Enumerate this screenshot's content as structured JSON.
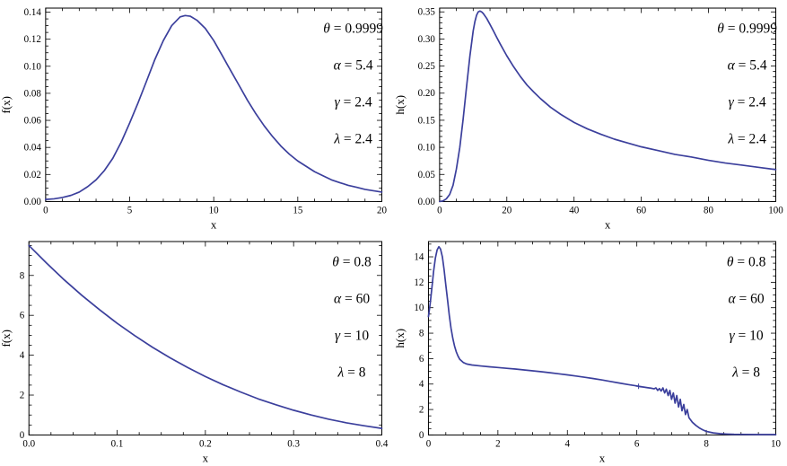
{
  "figure": {
    "curve_color": "#3b3f9c",
    "frame_color": "#000000",
    "background": "#ffffff"
  },
  "chart_data": [
    {
      "name": "pdf-plot-parameters-set-1",
      "type": "line",
      "title": "",
      "xlabel": "x",
      "ylabel": "f(x)",
      "xlim": [
        0,
        20
      ],
      "ylim": [
        0,
        0.143
      ],
      "grid": false,
      "legend": "none",
      "xticks": {
        "values": [
          0,
          5,
          10,
          15,
          20
        ],
        "labels": [
          "0",
          "5",
          "10",
          "15",
          "20"
        ]
      },
      "yticks": {
        "values": [
          0,
          0.02,
          0.04,
          0.06,
          0.08,
          0.1,
          0.12,
          0.14
        ],
        "labels": [
          "0.00",
          "0.02",
          "0.04",
          "0.06",
          "0.08",
          "0.10",
          "0.12",
          "0.14"
        ]
      },
      "xminor": 1,
      "yminor": 0.005,
      "annotations": [
        {
          "symbol": "θ",
          "value": "0.9999"
        },
        {
          "symbol": "α",
          "value": "5.4"
        },
        {
          "symbol": "γ",
          "value": "2.4"
        },
        {
          "symbol": "λ",
          "value": "2.4"
        }
      ],
      "points": [
        [
          0,
          0.0015
        ],
        [
          0.5,
          0.002
        ],
        [
          1,
          0.003
        ],
        [
          1.5,
          0.0045
        ],
        [
          2,
          0.007
        ],
        [
          2.5,
          0.011
        ],
        [
          3,
          0.016
        ],
        [
          3.5,
          0.023
        ],
        [
          4,
          0.032
        ],
        [
          4.5,
          0.044
        ],
        [
          5,
          0.058
        ],
        [
          5.5,
          0.073
        ],
        [
          6,
          0.089
        ],
        [
          6.5,
          0.105
        ],
        [
          7,
          0.119
        ],
        [
          7.5,
          0.13
        ],
        [
          8,
          0.1365
        ],
        [
          8.3,
          0.1375
        ],
        [
          8.6,
          0.137
        ],
        [
          9,
          0.134
        ],
        [
          9.5,
          0.128
        ],
        [
          10,
          0.119
        ],
        [
          10.5,
          0.108
        ],
        [
          11,
          0.097
        ],
        [
          11.5,
          0.086
        ],
        [
          12,
          0.075
        ],
        [
          12.5,
          0.065
        ],
        [
          13,
          0.056
        ],
        [
          13.5,
          0.048
        ],
        [
          14,
          0.041
        ],
        [
          14.5,
          0.035
        ],
        [
          15,
          0.03
        ],
        [
          15.5,
          0.026
        ],
        [
          16,
          0.022
        ],
        [
          16.5,
          0.019
        ],
        [
          17,
          0.016
        ],
        [
          17.5,
          0.014
        ],
        [
          18,
          0.012
        ],
        [
          18.5,
          0.0105
        ],
        [
          19,
          0.009
        ],
        [
          19.5,
          0.008
        ],
        [
          20,
          0.007
        ]
      ]
    },
    {
      "name": "hazard-plot-parameters-set-1",
      "type": "line",
      "title": "",
      "xlabel": "x",
      "ylabel": "h(x)",
      "xlim": [
        0,
        100
      ],
      "ylim": [
        0,
        0.357
      ],
      "grid": false,
      "legend": "none",
      "xticks": {
        "values": [
          0,
          20,
          40,
          60,
          80,
          100
        ],
        "labels": [
          "0",
          "20",
          "40",
          "60",
          "80",
          "100"
        ]
      },
      "yticks": {
        "values": [
          0,
          0.05,
          0.1,
          0.15,
          0.2,
          0.25,
          0.3,
          0.35
        ],
        "labels": [
          "0.00",
          "0.05",
          "0.10",
          "0.15",
          "0.20",
          "0.25",
          "0.30",
          "0.35"
        ]
      },
      "xminor": 5,
      "yminor": 0.01,
      "annotations": [
        {
          "symbol": "θ",
          "value": "0.9999"
        },
        {
          "symbol": "α",
          "value": "5.4"
        },
        {
          "symbol": "γ",
          "value": "2.4"
        },
        {
          "symbol": "λ",
          "value": "2.4"
        }
      ],
      "points": [
        [
          0,
          0
        ],
        [
          1,
          0.001
        ],
        [
          2,
          0.005
        ],
        [
          3,
          0.013
        ],
        [
          4,
          0.03
        ],
        [
          5,
          0.06
        ],
        [
          6,
          0.1
        ],
        [
          7,
          0.152
        ],
        [
          8,
          0.21
        ],
        [
          9,
          0.268
        ],
        [
          10,
          0.315
        ],
        [
          10.5,
          0.332
        ],
        [
          11,
          0.344
        ],
        [
          11.5,
          0.35
        ],
        [
          12,
          0.3515
        ],
        [
          12.5,
          0.35
        ],
        [
          13,
          0.347
        ],
        [
          14,
          0.338
        ],
        [
          15,
          0.327
        ],
        [
          16,
          0.315
        ],
        [
          17,
          0.303
        ],
        [
          18,
          0.291
        ],
        [
          19,
          0.28
        ],
        [
          20,
          0.269
        ],
        [
          22,
          0.249
        ],
        [
          24,
          0.231
        ],
        [
          26,
          0.215
        ],
        [
          28,
          0.202
        ],
        [
          30,
          0.19
        ],
        [
          33,
          0.174
        ],
        [
          36,
          0.161
        ],
        [
          40,
          0.146
        ],
        [
          44,
          0.134
        ],
        [
          48,
          0.124
        ],
        [
          52,
          0.115
        ],
        [
          56,
          0.108
        ],
        [
          60,
          0.101
        ],
        [
          65,
          0.094
        ],
        [
          70,
          0.087
        ],
        [
          75,
          0.082
        ],
        [
          80,
          0.076
        ],
        [
          85,
          0.071
        ],
        [
          90,
          0.067
        ],
        [
          95,
          0.063
        ],
        [
          100,
          0.059
        ]
      ]
    },
    {
      "name": "pdf-plot-parameters-set-2",
      "type": "line",
      "title": "",
      "xlabel": "x",
      "ylabel": "f(x)",
      "xlim": [
        0,
        0.4
      ],
      "ylim": [
        0,
        9.7
      ],
      "grid": false,
      "legend": "none",
      "xticks": {
        "values": [
          0,
          0.1,
          0.2,
          0.3,
          0.4
        ],
        "labels": [
          "0.0",
          "0.1",
          "0.2",
          "0.3",
          "0.4"
        ]
      },
      "yticks": {
        "values": [
          0,
          2,
          4,
          6,
          8
        ],
        "labels": [
          "0",
          "2",
          "4",
          "6",
          "8"
        ]
      },
      "xminor": 0.025,
      "yminor": 0.5,
      "annotations": [
        {
          "symbol": "θ",
          "value": "0.8"
        },
        {
          "symbol": "α",
          "value": "60"
        },
        {
          "symbol": "γ",
          "value": "10"
        },
        {
          "symbol": "λ",
          "value": "8"
        }
      ],
      "points": [
        [
          0,
          9.5
        ],
        [
          0.02,
          8.62
        ],
        [
          0.04,
          7.78
        ],
        [
          0.06,
          7.0
        ],
        [
          0.08,
          6.28
        ],
        [
          0.1,
          5.6
        ],
        [
          0.12,
          4.98
        ],
        [
          0.14,
          4.4
        ],
        [
          0.16,
          3.87
        ],
        [
          0.18,
          3.38
        ],
        [
          0.2,
          2.93
        ],
        [
          0.22,
          2.52
        ],
        [
          0.24,
          2.15
        ],
        [
          0.26,
          1.81
        ],
        [
          0.28,
          1.51
        ],
        [
          0.3,
          1.24
        ],
        [
          0.32,
          1.0
        ],
        [
          0.34,
          0.79
        ],
        [
          0.36,
          0.61
        ],
        [
          0.38,
          0.46
        ],
        [
          0.4,
          0.33
        ]
      ]
    },
    {
      "name": "hazard-plot-parameters-set-2",
      "type": "line",
      "title": "",
      "xlabel": "x",
      "ylabel": "h(x)",
      "xlim": [
        0,
        10
      ],
      "ylim": [
        0,
        15.2
      ],
      "grid": false,
      "legend": "none",
      "xticks": {
        "values": [
          0,
          2,
          4,
          6,
          8,
          10
        ],
        "labels": [
          "0",
          "2",
          "4",
          "6",
          "8",
          "10"
        ]
      },
      "yticks": {
        "values": [
          0,
          2,
          4,
          6,
          8,
          10,
          12,
          14
        ],
        "labels": [
          "0",
          "2",
          "4",
          "6",
          "8",
          "10",
          "12",
          "14"
        ]
      },
      "xminor": 0.5,
      "yminor": 0.5,
      "marker": {
        "x": 6.05,
        "y": 3.82,
        "type": "plus"
      },
      "annotations": [
        {
          "symbol": "θ",
          "value": "0.8"
        },
        {
          "symbol": "α",
          "value": "60"
        },
        {
          "symbol": "γ",
          "value": "10"
        },
        {
          "symbol": "λ",
          "value": "8"
        }
      ],
      "points": [
        [
          0,
          9.3
        ],
        [
          0.05,
          10.3
        ],
        [
          0.1,
          11.6
        ],
        [
          0.15,
          12.9
        ],
        [
          0.2,
          13.9
        ],
        [
          0.25,
          14.55
        ],
        [
          0.3,
          14.8
        ],
        [
          0.35,
          14.6
        ],
        [
          0.4,
          14.0
        ],
        [
          0.45,
          13.0
        ],
        [
          0.5,
          11.8
        ],
        [
          0.55,
          10.6
        ],
        [
          0.6,
          9.4
        ],
        [
          0.65,
          8.4
        ],
        [
          0.7,
          7.6
        ],
        [
          0.75,
          7.0
        ],
        [
          0.8,
          6.55
        ],
        [
          0.85,
          6.2
        ],
        [
          0.9,
          5.95
        ],
        [
          1.0,
          5.7
        ],
        [
          1.1,
          5.58
        ],
        [
          1.25,
          5.5
        ],
        [
          1.5,
          5.42
        ],
        [
          1.75,
          5.36
        ],
        [
          2,
          5.3
        ],
        [
          2.25,
          5.24
        ],
        [
          2.5,
          5.18
        ],
        [
          2.75,
          5.11
        ],
        [
          3,
          5.04
        ],
        [
          3.25,
          4.97
        ],
        [
          3.5,
          4.89
        ],
        [
          3.75,
          4.81
        ],
        [
          4,
          4.72
        ],
        [
          4.25,
          4.63
        ],
        [
          4.5,
          4.53
        ],
        [
          4.75,
          4.43
        ],
        [
          5,
          4.32
        ],
        [
          5.25,
          4.2
        ],
        [
          5.5,
          4.08
        ],
        [
          5.75,
          3.96
        ],
        [
          6,
          3.85
        ],
        [
          6.1,
          3.8
        ],
        [
          6.2,
          3.76
        ],
        [
          6.3,
          3.72
        ],
        [
          6.4,
          3.68
        ],
        [
          6.5,
          3.63
        ],
        [
          6.55,
          3.7
        ],
        [
          6.6,
          3.5
        ],
        [
          6.65,
          3.65
        ],
        [
          6.7,
          3.45
        ],
        [
          6.75,
          3.7
        ],
        [
          6.8,
          3.3
        ],
        [
          6.85,
          3.6
        ],
        [
          6.9,
          3.1
        ],
        [
          6.95,
          3.5
        ],
        [
          7.0,
          2.8
        ],
        [
          7.05,
          3.3
        ],
        [
          7.1,
          2.5
        ],
        [
          7.15,
          3.1
        ],
        [
          7.2,
          2.2
        ],
        [
          7.25,
          2.8
        ],
        [
          7.3,
          1.9
        ],
        [
          7.35,
          2.4
        ],
        [
          7.4,
          1.6
        ],
        [
          7.45,
          2.0
        ],
        [
          7.5,
          1.35
        ],
        [
          7.6,
          1.0
        ],
        [
          7.7,
          0.75
        ],
        [
          7.8,
          0.55
        ],
        [
          7.9,
          0.4
        ],
        [
          8,
          0.28
        ],
        [
          8.2,
          0.16
        ],
        [
          8.4,
          0.1
        ],
        [
          8.6,
          0.07
        ],
        [
          8.8,
          0.05
        ],
        [
          9,
          0.04
        ],
        [
          9.5,
          0.03
        ],
        [
          10,
          0.025
        ]
      ]
    }
  ]
}
